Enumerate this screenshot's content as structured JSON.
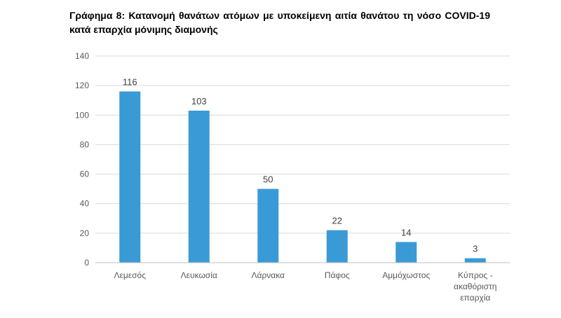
{
  "chart_data": {
    "type": "bar",
    "title": "Γράφημα 8: Κατανομή θανάτων ατόμων με υποκείμενη αιτία θανάτου τη νόσο COVID-19 κατά επαρχία μόνιμης διαμονής",
    "categories": [
      [
        "Λεμεσός"
      ],
      [
        "Λευκωσία"
      ],
      [
        "Λάρνακα"
      ],
      [
        "Πάφος"
      ],
      [
        "Αμμόχωστος"
      ],
      [
        "Κύπρος -",
        "ακαθόριστη",
        "επαρχία"
      ]
    ],
    "values": [
      116,
      103,
      50,
      22,
      14,
      3
    ],
    "ylim": [
      0,
      140
    ],
    "yticks": [
      0,
      20,
      40,
      60,
      80,
      100,
      120,
      140
    ],
    "xlabel": "",
    "ylabel": "",
    "grid": true,
    "legend": "none",
    "bar_color": "#3a9ad6"
  }
}
